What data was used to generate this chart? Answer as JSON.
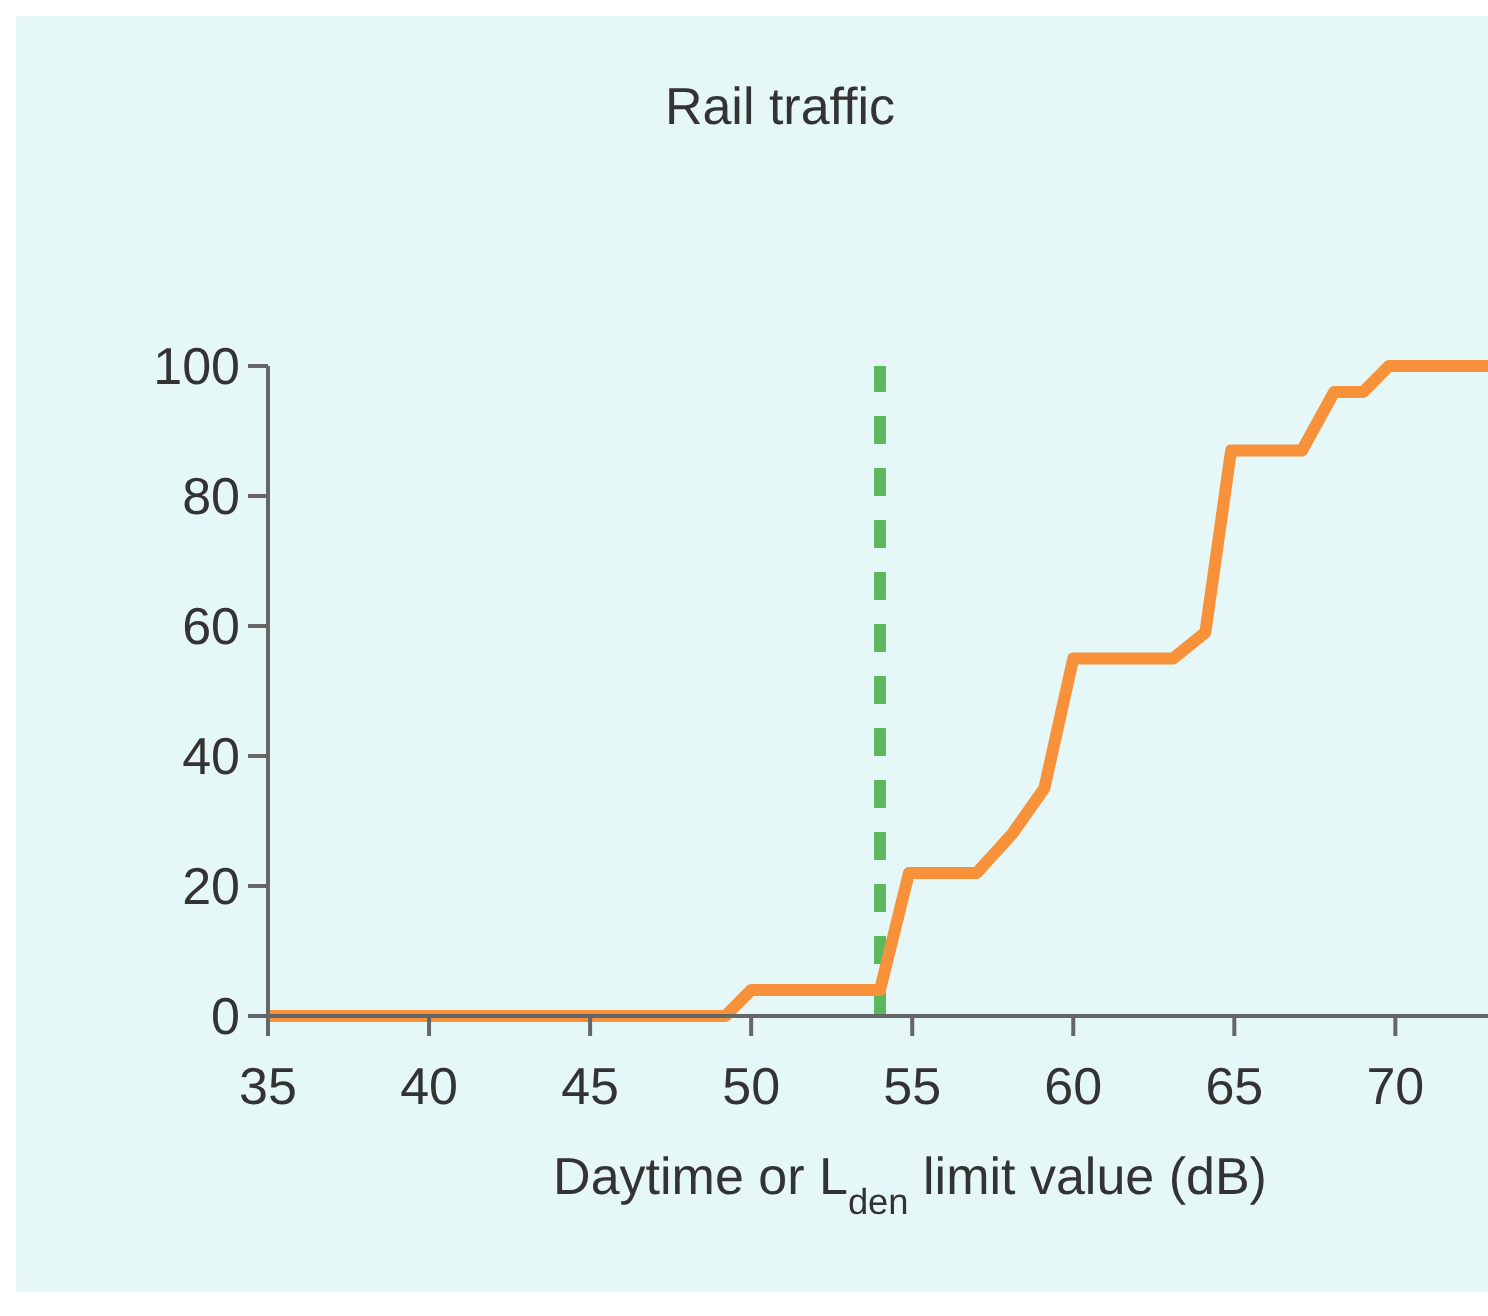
{
  "chart_data": {
    "type": "line",
    "title": "Rail traffic",
    "xlabel": "Daytime or L$_{den}$ limit value (dB)",
    "xlim": [
      35,
      73
    ],
    "xticks": [
      35,
      40,
      45,
      50,
      55,
      60,
      65,
      70
    ],
    "ylim": [
      0,
      100
    ],
    "yticks": [
      0,
      20,
      40,
      60,
      80,
      100
    ],
    "grid": false,
    "series": [
      {
        "color": "#f7923a",
        "x": [
          35,
          49.2,
          50,
          54,
          54.9,
          57,
          58.1,
          59.1,
          60,
          63.1,
          64.1,
          64.9,
          67.1,
          68.1,
          69,
          69.8,
          73
        ],
        "values": [
          0,
          0,
          4,
          4,
          22,
          22,
          28,
          35,
          55,
          55,
          59,
          87,
          87,
          96,
          96,
          100,
          100
        ]
      }
    ],
    "ref_lines": [
      {
        "axis": "x",
        "value": 54,
        "color": "#5cb85c",
        "line_style": "dashed"
      }
    ]
  }
}
